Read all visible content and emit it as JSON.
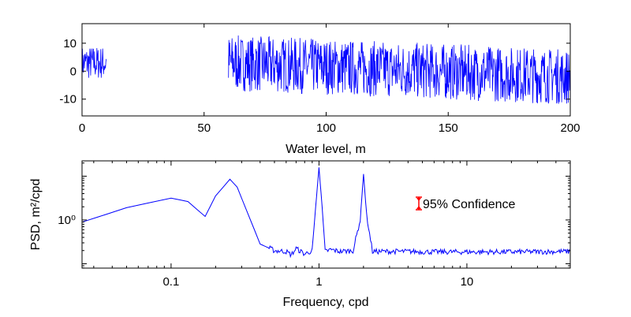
{
  "chart_data": [
    {
      "type": "line",
      "title": "",
      "xlabel": "Water level, m",
      "ylabel": "",
      "xlim": [
        0,
        200
      ],
      "ylim": [
        -16,
        17
      ],
      "x_ticks": [
        "0",
        "50",
        "100",
        "150",
        "200"
      ],
      "y_ticks": [
        "-10",
        "0",
        "10"
      ],
      "grid": false,
      "line_color": "#0000ff",
      "series": [
        {
          "segments": [
            {
              "x_start": 0,
              "x_end": 10,
              "center": 3,
              "amplitude": 6
            },
            {
              "x_start": 60,
              "x_end": 200,
              "center_start": 3,
              "center_end": -2,
              "amplitude": 10
            }
          ]
        }
      ]
    },
    {
      "type": "line",
      "title": "",
      "xlabel": "Frequency, cpd",
      "ylabel": "PSD, m²/cpd",
      "xscale": "log",
      "yscale": "log",
      "xlim": [
        0.025,
        50
      ],
      "x_ticks": [
        "0.1",
        "1",
        "10"
      ],
      "y_ticks": [
        "10⁰"
      ],
      "grid": false,
      "line_color": "#0000ff",
      "annotation": {
        "text": "95% Confidence",
        "marker_color": "#ff0000"
      },
      "series": [
        {
          "x": [
            0.025,
            0.05,
            0.1,
            0.13,
            0.17,
            0.2,
            0.25,
            0.28,
            0.33,
            0.4,
            0.5,
            0.6,
            0.65,
            0.7,
            0.8,
            0.9,
            0.95,
            1.0,
            1.05,
            1.1,
            1.2,
            1.4,
            1.7,
            1.9,
            2.0,
            2.1,
            2.3,
            3,
            4,
            6,
            10,
            20,
            50
          ],
          "log10_psd": [
            -0.05,
            0.28,
            0.5,
            0.42,
            0.08,
            0.55,
            0.93,
            0.75,
            0.15,
            -0.55,
            -0.7,
            -0.72,
            -0.8,
            -0.65,
            -0.78,
            -0.7,
            0.3,
            1.2,
            0.3,
            -0.72,
            -0.68,
            -0.72,
            -0.7,
            0.0,
            1.05,
            0.1,
            -0.72,
            -0.72,
            -0.72,
            -0.73,
            -0.73,
            -0.73,
            -0.72
          ]
        }
      ]
    }
  ]
}
